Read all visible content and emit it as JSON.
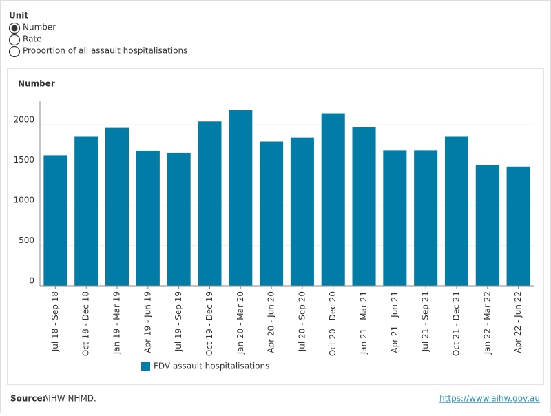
{
  "controls": {
    "label": "Unit",
    "options": [
      "Number",
      "Rate",
      "Proportion of all assault hospitalisations"
    ],
    "selected": 0
  },
  "chart_data": {
    "type": "bar",
    "title": "Number",
    "categories": [
      "Jul 18 - Sep 18",
      "Oct 18 - Dec 18",
      "Jan 19 - Mar 19",
      "Apr 19 - Jun 19",
      "Jul 19 - Sep 19",
      "Oct 19 - Dec 19",
      "Jan 20 - Mar 20",
      "Apr 20 - Jun 20",
      "Jul 20 - Sep 20",
      "Oct 20 - Dec 20",
      "Jan 21 - Mar 21",
      "Apr 21 - Jun 21",
      "Jul 21 - Sep 21",
      "Oct 21 - Dec 21",
      "Jan 22 - Mar 22",
      "Apr 22 - Jun 22"
    ],
    "series": [
      {
        "name": "FDV assault hospitalisations",
        "color": "#007ca6",
        "values": [
          1620,
          1850,
          1960,
          1675,
          1650,
          2040,
          2180,
          1790,
          1840,
          2140,
          1970,
          1680,
          1680,
          1850,
          1500,
          1480
        ]
      }
    ],
    "ylim": [
      0,
      2290
    ],
    "yticks": [
      0,
      500,
      1000,
      1500,
      2000
    ],
    "grid": true
  },
  "footer": {
    "source_label": "Source:",
    "source": "AIHW NHMD.",
    "url": "https://www.aihw.gov.au"
  }
}
